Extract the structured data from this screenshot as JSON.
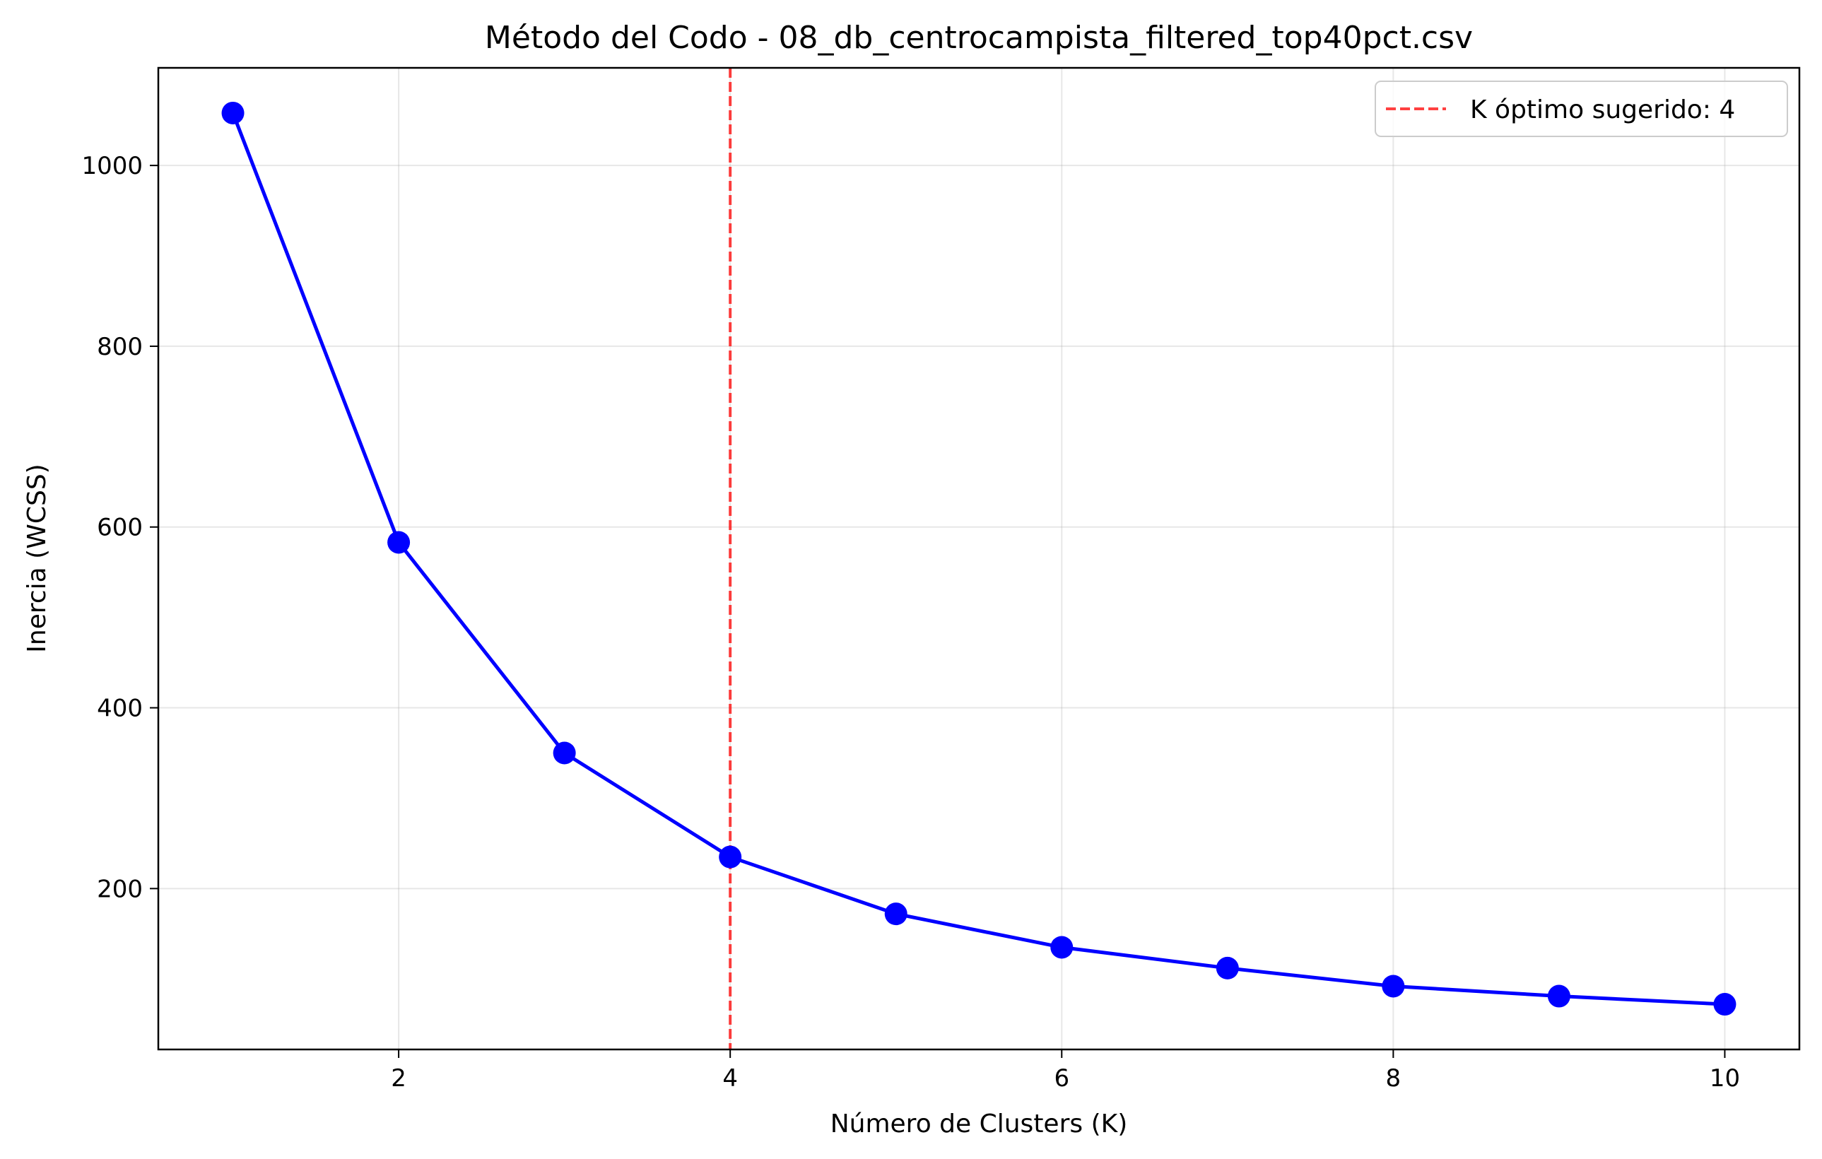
{
  "chart_data": {
    "type": "line",
    "title": "Método del Codo - 08_db_centrocampista_filtered_top40pct.csv",
    "xlabel": "Número de Clusters (K)",
    "ylabel": "Inercia (WCSS)",
    "xlim": [
      0.55,
      10.45
    ],
    "ylim": [
      22,
      1108
    ],
    "xticks": [
      2,
      4,
      6,
      8,
      10
    ],
    "yticks": [
      200,
      400,
      600,
      800,
      1000
    ],
    "grid": true,
    "legend_position": "upper right",
    "series": [
      {
        "x": [
          1,
          2,
          3,
          4,
          5,
          6,
          7,
          8,
          9,
          10
        ],
        "values": [
          1058,
          583,
          350,
          235,
          172,
          135,
          112,
          92,
          81,
          72
        ],
        "color": "#0000ff",
        "marker": "circle"
      }
    ],
    "annotations": [
      {
        "type": "vline",
        "x": 4,
        "label": "K óptimo sugerido: 4",
        "color": "#ff0000",
        "style": "dashed"
      }
    ]
  }
}
